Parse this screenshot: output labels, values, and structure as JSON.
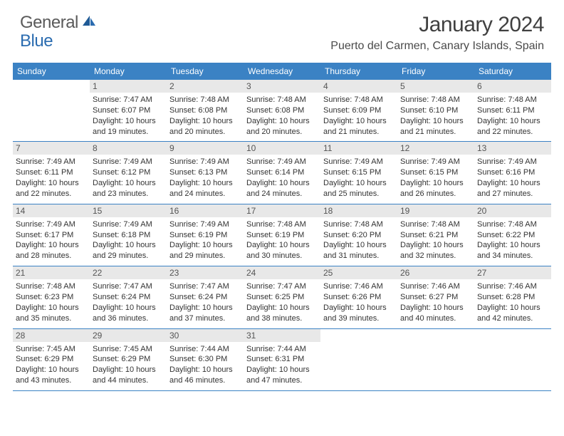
{
  "logo": {
    "general": "General",
    "blue": "Blue"
  },
  "title": "January 2024",
  "location": "Puerto del Carmen, Canary Islands, Spain",
  "colors": {
    "header_bg": "#3b82c4",
    "header_text": "#ffffff",
    "daynum_bg": "#e8e8e8",
    "daynum_text": "#555555",
    "body_text": "#333333",
    "row_border": "#3b82c4",
    "logo_gray": "#5a5a5a",
    "logo_blue": "#2b6cb0"
  },
  "typography": {
    "title_fontsize": 30,
    "location_fontsize": 16,
    "dayheader_fontsize": 12,
    "daynum_fontsize": 12,
    "cell_fontsize": 11
  },
  "layout": {
    "columns": 7,
    "rows": 5
  },
  "day_labels": [
    "Sunday",
    "Monday",
    "Tuesday",
    "Wednesday",
    "Thursday",
    "Friday",
    "Saturday"
  ],
  "first_day_offset": 1,
  "days": [
    {
      "n": 1,
      "sunrise": "7:47 AM",
      "sunset": "6:07 PM",
      "daylight": "10 hours and 19 minutes."
    },
    {
      "n": 2,
      "sunrise": "7:48 AM",
      "sunset": "6:08 PM",
      "daylight": "10 hours and 20 minutes."
    },
    {
      "n": 3,
      "sunrise": "7:48 AM",
      "sunset": "6:08 PM",
      "daylight": "10 hours and 20 minutes."
    },
    {
      "n": 4,
      "sunrise": "7:48 AM",
      "sunset": "6:09 PM",
      "daylight": "10 hours and 21 minutes."
    },
    {
      "n": 5,
      "sunrise": "7:48 AM",
      "sunset": "6:10 PM",
      "daylight": "10 hours and 21 minutes."
    },
    {
      "n": 6,
      "sunrise": "7:48 AM",
      "sunset": "6:11 PM",
      "daylight": "10 hours and 22 minutes."
    },
    {
      "n": 7,
      "sunrise": "7:49 AM",
      "sunset": "6:11 PM",
      "daylight": "10 hours and 22 minutes."
    },
    {
      "n": 8,
      "sunrise": "7:49 AM",
      "sunset": "6:12 PM",
      "daylight": "10 hours and 23 minutes."
    },
    {
      "n": 9,
      "sunrise": "7:49 AM",
      "sunset": "6:13 PM",
      "daylight": "10 hours and 24 minutes."
    },
    {
      "n": 10,
      "sunrise": "7:49 AM",
      "sunset": "6:14 PM",
      "daylight": "10 hours and 24 minutes."
    },
    {
      "n": 11,
      "sunrise": "7:49 AM",
      "sunset": "6:15 PM",
      "daylight": "10 hours and 25 minutes."
    },
    {
      "n": 12,
      "sunrise": "7:49 AM",
      "sunset": "6:15 PM",
      "daylight": "10 hours and 26 minutes."
    },
    {
      "n": 13,
      "sunrise": "7:49 AM",
      "sunset": "6:16 PM",
      "daylight": "10 hours and 27 minutes."
    },
    {
      "n": 14,
      "sunrise": "7:49 AM",
      "sunset": "6:17 PM",
      "daylight": "10 hours and 28 minutes."
    },
    {
      "n": 15,
      "sunrise": "7:49 AM",
      "sunset": "6:18 PM",
      "daylight": "10 hours and 29 minutes."
    },
    {
      "n": 16,
      "sunrise": "7:49 AM",
      "sunset": "6:19 PM",
      "daylight": "10 hours and 29 minutes."
    },
    {
      "n": 17,
      "sunrise": "7:48 AM",
      "sunset": "6:19 PM",
      "daylight": "10 hours and 30 minutes."
    },
    {
      "n": 18,
      "sunrise": "7:48 AM",
      "sunset": "6:20 PM",
      "daylight": "10 hours and 31 minutes."
    },
    {
      "n": 19,
      "sunrise": "7:48 AM",
      "sunset": "6:21 PM",
      "daylight": "10 hours and 32 minutes."
    },
    {
      "n": 20,
      "sunrise": "7:48 AM",
      "sunset": "6:22 PM",
      "daylight": "10 hours and 34 minutes."
    },
    {
      "n": 21,
      "sunrise": "7:48 AM",
      "sunset": "6:23 PM",
      "daylight": "10 hours and 35 minutes."
    },
    {
      "n": 22,
      "sunrise": "7:47 AM",
      "sunset": "6:24 PM",
      "daylight": "10 hours and 36 minutes."
    },
    {
      "n": 23,
      "sunrise": "7:47 AM",
      "sunset": "6:24 PM",
      "daylight": "10 hours and 37 minutes."
    },
    {
      "n": 24,
      "sunrise": "7:47 AM",
      "sunset": "6:25 PM",
      "daylight": "10 hours and 38 minutes."
    },
    {
      "n": 25,
      "sunrise": "7:46 AM",
      "sunset": "6:26 PM",
      "daylight": "10 hours and 39 minutes."
    },
    {
      "n": 26,
      "sunrise": "7:46 AM",
      "sunset": "6:27 PM",
      "daylight": "10 hours and 40 minutes."
    },
    {
      "n": 27,
      "sunrise": "7:46 AM",
      "sunset": "6:28 PM",
      "daylight": "10 hours and 42 minutes."
    },
    {
      "n": 28,
      "sunrise": "7:45 AM",
      "sunset": "6:29 PM",
      "daylight": "10 hours and 43 minutes."
    },
    {
      "n": 29,
      "sunrise": "7:45 AM",
      "sunset": "6:29 PM",
      "daylight": "10 hours and 44 minutes."
    },
    {
      "n": 30,
      "sunrise": "7:44 AM",
      "sunset": "6:30 PM",
      "daylight": "10 hours and 46 minutes."
    },
    {
      "n": 31,
      "sunrise": "7:44 AM",
      "sunset": "6:31 PM",
      "daylight": "10 hours and 47 minutes."
    }
  ],
  "labels": {
    "sunrise": "Sunrise:",
    "sunset": "Sunset:",
    "daylight": "Daylight:"
  }
}
